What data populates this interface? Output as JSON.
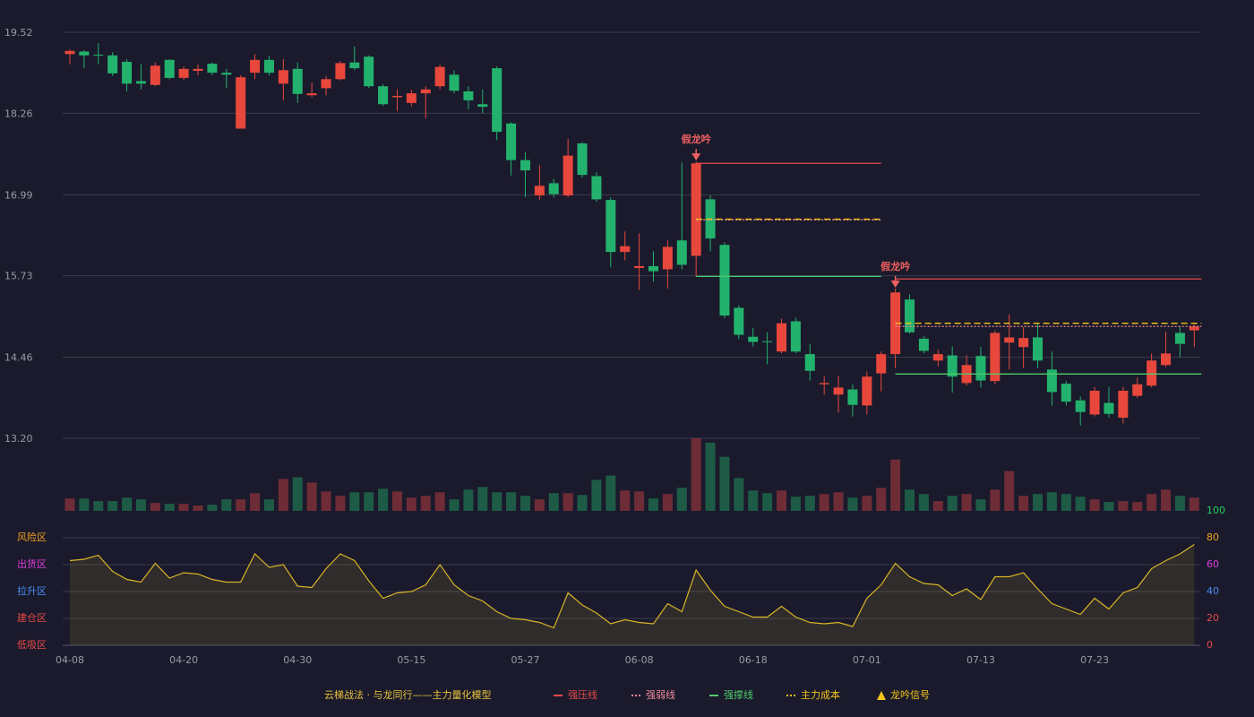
{
  "chart_data": [
    {
      "type": "candlestick",
      "title": "云梯战法 · 与龙同行——主力量化模型",
      "categories": [
        "04-08",
        null,
        null,
        null,
        null,
        null,
        null,
        null,
        "04-20",
        null,
        null,
        null,
        null,
        null,
        null,
        null,
        "04-30",
        null,
        null,
        null,
        null,
        null,
        null,
        null,
        "05-15",
        null,
        null,
        null,
        null,
        null,
        null,
        null,
        "05-27",
        null,
        null,
        null,
        null,
        null,
        null,
        null,
        "06-08",
        null,
        null,
        null,
        null,
        null,
        null,
        null,
        "06-18",
        null,
        null,
        null,
        null,
        null,
        null,
        null,
        "07-01",
        null,
        null,
        null,
        null,
        null,
        null,
        null,
        "07-13",
        null,
        null,
        null,
        null,
        null,
        null,
        null,
        "07-23",
        null,
        null,
        null,
        null,
        null,
        null,
        null
      ],
      "open": [
        19.18,
        19.22,
        19.17,
        19.16,
        19.06,
        18.76,
        18.7,
        19.09,
        18.81,
        18.92,
        19.03,
        18.89,
        18.02,
        18.89,
        19.09,
        18.72,
        18.95,
        18.54,
        18.65,
        18.79,
        19.05,
        19.14,
        18.68,
        18.51,
        18.42,
        18.57,
        18.68,
        18.86,
        18.6,
        18.4,
        18.96,
        18.1,
        17.53,
        16.98,
        17.17,
        16.98,
        17.79,
        17.28,
        16.91,
        16.1,
        15.85,
        15.88,
        15.83,
        16.28,
        16.04,
        16.92,
        16.21,
        15.23,
        14.78,
        14.71,
        14.55,
        15.02,
        14.51,
        14.04,
        13.88,
        13.96,
        13.71,
        14.21,
        14.51,
        15.36,
        14.75,
        14.41,
        14.49,
        14.06,
        14.48,
        14.09,
        14.69,
        14.62,
        14.77,
        14.27,
        14.05,
        13.79,
        13.57,
        13.75,
        13.52,
        13.86,
        14.02,
        14.34,
        14.84,
        14.88
      ],
      "high": [
        19.25,
        19.24,
        19.35,
        19.21,
        19.1,
        19.02,
        19.05,
        19.1,
        18.99,
        19.02,
        19.05,
        18.95,
        18.85,
        19.18,
        19.15,
        19.1,
        19.05,
        18.74,
        18.84,
        19.07,
        19.3,
        19.16,
        18.71,
        18.63,
        18.63,
        18.68,
        19.02,
        18.93,
        18.68,
        18.63,
        18.99,
        18.12,
        17.65,
        17.45,
        17.24,
        17.86,
        17.81,
        17.34,
        16.95,
        16.42,
        16.39,
        16.11,
        16.28,
        17.49,
        17.51,
        16.98,
        16.25,
        15.27,
        14.92,
        14.85,
        15.06,
        15.08,
        14.67,
        14.17,
        14.17,
        14.04,
        14.24,
        14.55,
        15.53,
        15.44,
        14.79,
        14.58,
        14.63,
        14.49,
        14.62,
        14.88,
        15.13,
        14.93,
        14.99,
        14.55,
        14.09,
        13.85,
        14.0,
        14.0,
        14.0,
        14.15,
        14.52,
        14.86,
        14.94,
        14.97
      ],
      "low": [
        19.02,
        18.96,
        19.02,
        18.84,
        18.6,
        18.63,
        18.68,
        18.79,
        18.78,
        18.85,
        18.85,
        18.65,
        18.02,
        18.79,
        18.85,
        18.46,
        18.42,
        18.51,
        18.54,
        18.77,
        18.93,
        18.65,
        18.37,
        18.29,
        18.37,
        18.18,
        18.63,
        18.57,
        18.32,
        18.26,
        17.84,
        17.29,
        16.95,
        16.91,
        16.95,
        16.95,
        17.26,
        16.88,
        15.86,
        15.97,
        15.51,
        15.64,
        15.53,
        15.83,
        15.72,
        16.11,
        15.07,
        14.74,
        14.63,
        14.35,
        14.52,
        14.52,
        14.1,
        13.88,
        13.6,
        13.54,
        13.57,
        13.93,
        14.29,
        14.83,
        14.52,
        14.32,
        13.91,
        14.02,
        13.99,
        14.04,
        14.27,
        14.29,
        14.29,
        13.71,
        13.71,
        13.4,
        13.54,
        13.52,
        13.43,
        13.83,
        13.99,
        14.31,
        14.46,
        14.62
      ],
      "close": [
        19.23,
        19.16,
        19.16,
        18.88,
        18.72,
        18.72,
        19.0,
        18.81,
        18.95,
        18.95,
        18.89,
        18.86,
        18.82,
        19.09,
        18.89,
        18.93,
        18.56,
        18.57,
        18.79,
        19.04,
        18.96,
        18.68,
        18.4,
        18.53,
        18.57,
        18.63,
        18.98,
        18.61,
        18.46,
        18.36,
        17.97,
        17.53,
        17.37,
        17.13,
        17.0,
        17.6,
        17.3,
        16.92,
        16.1,
        16.19,
        15.88,
        15.8,
        16.18,
        15.9,
        17.48,
        16.31,
        15.11,
        14.81,
        14.7,
        14.7,
        14.99,
        14.55,
        14.25,
        14.06,
        13.99,
        13.72,
        14.16,
        14.51,
        15.47,
        14.85,
        14.56,
        14.51,
        14.16,
        14.34,
        14.1,
        14.84,
        14.77,
        14.76,
        14.41,
        13.92,
        13.77,
        13.61,
        13.94,
        13.58,
        13.94,
        14.04,
        14.41,
        14.52,
        14.67,
        14.94
      ],
      "up_color": "#e8473c",
      "down_color": "#23b26d",
      "ylim": [
        13.2,
        19.52
      ],
      "yticks": [
        {
          "value": 19.52,
          "label": "19.52"
        },
        {
          "value": 18.26,
          "label": "18.26"
        },
        {
          "value": 16.99,
          "label": "16.99"
        },
        {
          "value": 15.73,
          "label": "15.73"
        },
        {
          "value": 14.46,
          "label": "14.46"
        },
        {
          "value": 13.2,
          "label": "13.20"
        }
      ],
      "grid": true,
      "levels": [
        {
          "name": "强压线",
          "color": "#e84a4a",
          "dash": "none",
          "segments": [
            {
              "from": 44,
              "to": 57,
              "value": 17.48
            },
            {
              "from": 58,
              "to": 79,
              "value": 15.68
            }
          ]
        },
        {
          "name": "强弱线",
          "color": "#f08a9a",
          "dash": "2,2",
          "segments": [
            {
              "from": 44,
              "to": 57,
              "value": 16.6
            },
            {
              "from": 58,
              "to": 79,
              "value": 14.94
            }
          ]
        },
        {
          "name": "强撑线",
          "color": "#4ecb6a",
          "dash": "none",
          "segments": [
            {
              "from": 44,
              "to": 57,
              "value": 15.72
            },
            {
              "from": 58,
              "to": 79,
              "value": 14.2
            }
          ]
        },
        {
          "name": "主力成本",
          "color": "#f5c518",
          "dash": "7,4",
          "segments": [
            {
              "from": 44,
              "to": 57,
              "value": 16.61
            },
            {
              "from": 58,
              "to": 79,
              "value": 14.99
            }
          ]
        }
      ],
      "signal_name": "龙吟信号",
      "signal_color": "#f5c518",
      "signals": [
        {
          "label": "假龙吟",
          "index": 44,
          "color": "#f06060"
        },
        {
          "label": "假龙吟",
          "index": 58,
          "color": "#f06060"
        }
      ]
    },
    {
      "type": "volume",
      "values": [
        14,
        14,
        11,
        11,
        15,
        13,
        9,
        8,
        8,
        6,
        7,
        13,
        13,
        20,
        13,
        36,
        38,
        32,
        22,
        17,
        21,
        21,
        25,
        22,
        15,
        17,
        21,
        13,
        24,
        27,
        21,
        21,
        17,
        13,
        20,
        20,
        18,
        35,
        40,
        23,
        22,
        14,
        19,
        26,
        82,
        77,
        61,
        37,
        23,
        20,
        23,
        16,
        17,
        19,
        21,
        15,
        17,
        26,
        58,
        24,
        19,
        11,
        17,
        19,
        13,
        24,
        45,
        17,
        19,
        21,
        19,
        16,
        13,
        10,
        11,
        10,
        19,
        24,
        17,
        15
      ],
      "up_color": "#6e2c36",
      "down_color": "#1e5b46"
    },
    {
      "type": "line",
      "color": "#d9b426",
      "values": [
        63,
        64,
        67,
        55,
        49,
        47,
        61,
        50,
        54,
        53,
        49,
        47,
        47,
        68,
        58,
        60,
        44,
        43,
        57,
        68,
        63,
        48,
        35,
        39,
        40,
        45,
        60,
        45,
        37,
        33,
        25,
        20,
        19,
        17,
        13,
        39,
        30,
        24,
        16,
        19,
        17,
        16,
        31,
        25,
        56,
        41,
        29,
        25,
        21,
        21,
        29,
        21,
        17,
        16,
        17,
        14,
        35,
        45,
        61,
        51,
        46,
        45,
        37,
        42,
        34,
        51,
        51,
        54,
        42,
        31,
        27,
        23,
        35,
        27,
        39,
        43,
        57,
        63,
        68,
        75
      ],
      "ylim": [
        0,
        100
      ],
      "yticks": [
        100,
        80,
        60,
        40,
        20,
        0
      ],
      "ytick_colors": [
        "#22d35a",
        "#f0a020",
        "#e040e0",
        "#4a8cf0",
        "#e84a4a",
        "#e84a4a"
      ],
      "zones": [
        {
          "label": "风险区",
          "value": 80,
          "color": "#f0a020"
        },
        {
          "label": "出货区",
          "value": 60,
          "color": "#e040e0"
        },
        {
          "label": "拉升区",
          "value": 40,
          "color": "#4a8cf0"
        },
        {
          "label": "建仓区",
          "value": 20,
          "color": "#e84a4a"
        },
        {
          "label": "低吸区",
          "value": 0,
          "color": "#e84a4a"
        }
      ]
    }
  ]
}
